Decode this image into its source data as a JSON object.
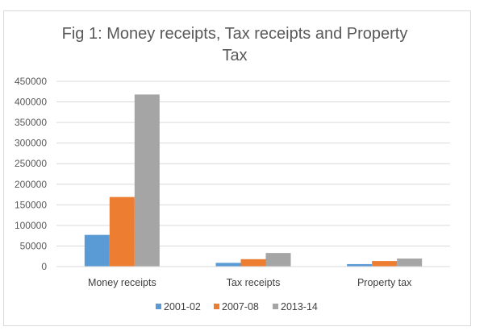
{
  "chart_data": {
    "type": "bar",
    "title_lines": [
      "Fig 1: Money receipts, Tax receipts and Property",
      "Tax"
    ],
    "categories": [
      "Money receipts",
      "Tax receipts",
      "Property tax"
    ],
    "series": [
      {
        "name": "2001-02",
        "color": "#5B9BD5",
        "values": [
          77000,
          9000,
          6000
        ]
      },
      {
        "name": "2007-08",
        "color": "#ED7D31",
        "values": [
          169000,
          18000,
          13500
        ]
      },
      {
        "name": "2013-14",
        "color": "#A5A5A5",
        "values": [
          418000,
          33000,
          19500
        ]
      }
    ],
    "ylim": [
      0,
      450000
    ],
    "yticks": [
      "0",
      "50000",
      "100000",
      "150000",
      "200000",
      "250000",
      "300000",
      "350000",
      "400000",
      "450000"
    ],
    "grid": true,
    "legend_position": "bottom",
    "xlabel": "",
    "ylabel": ""
  }
}
